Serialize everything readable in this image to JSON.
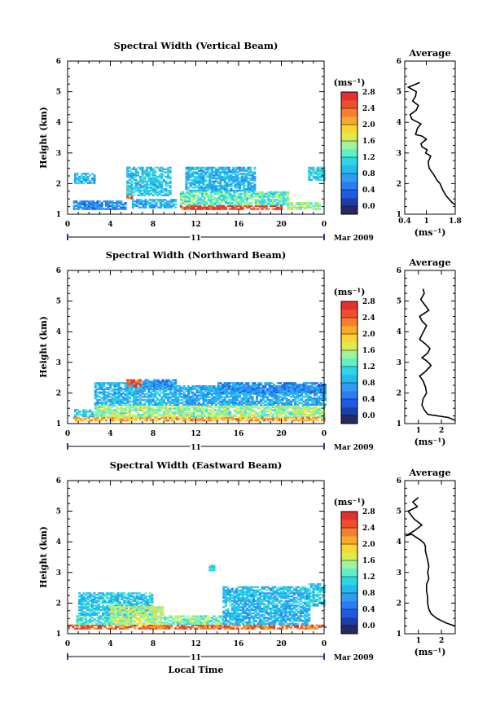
{
  "figure": {
    "date_label": "Mar 2009",
    "day_label": "11",
    "xlabel": "Local Time"
  },
  "colorbar": {
    "unit": "(ms⁻¹)",
    "ticks": [
      "0.0",
      "0.4",
      "0.8",
      "1.2",
      "1.6",
      "2.0",
      "2.4",
      "2.8"
    ],
    "colors": [
      "#262a5e",
      "#1c3ea8",
      "#1f5ae0",
      "#2b7cf2",
      "#2f9cf0",
      "#25b9ee",
      "#2cd6e6",
      "#5ff0c8",
      "#9ff2a0",
      "#ddec4b",
      "#f9d536",
      "#f7aa2e",
      "#f47f2e",
      "#ee4e2c",
      "#e3302f"
    ]
  },
  "chart_data": [
    {
      "type": "heatmap",
      "title": "Spectral Width (Vertical Beam)",
      "xlabel": "",
      "ylabel": "Height (km)",
      "xlim": [
        0,
        24
      ],
      "ylim": [
        1,
        6
      ],
      "x_ticks": [
        "0",
        "4",
        "8",
        "12",
        "16",
        "20",
        "0"
      ],
      "y_ticks": [
        "1",
        "2",
        "3",
        "4",
        "5",
        "6"
      ],
      "value_range": [
        0,
        3.0
      ],
      "regions": [
        {
          "x": [
            0.5,
            5.5
          ],
          "y": [
            1.15,
            1.45
          ],
          "v": 0.8
        },
        {
          "x": [
            0.6,
            2.5
          ],
          "y": [
            2.0,
            2.3
          ],
          "v": 1.1
        },
        {
          "x": [
            5.5,
            6.0
          ],
          "y": [
            1.5,
            1.8
          ],
          "v": 2.6
        },
        {
          "x": [
            6.0,
            10.0
          ],
          "y": [
            1.2,
            1.5
          ],
          "v": 1.0
        },
        {
          "x": [
            5.5,
            9.5
          ],
          "y": [
            1.6,
            2.5
          ],
          "v": 1.2
        },
        {
          "x": [
            10.5,
            20.0
          ],
          "y": [
            1.15,
            1.3
          ],
          "v": 2.8
        },
        {
          "x": [
            10.5,
            20.5
          ],
          "y": [
            1.3,
            1.75
          ],
          "v": 1.5
        },
        {
          "x": [
            11.0,
            17.5
          ],
          "y": [
            1.75,
            2.5
          ],
          "v": 1.1
        },
        {
          "x": [
            20.5,
            23.5
          ],
          "y": [
            1.15,
            1.4
          ],
          "v": 1.7
        },
        {
          "x": [
            22.5,
            24.0
          ],
          "y": [
            2.1,
            2.5
          ],
          "v": 1.3
        }
      ]
    },
    {
      "type": "line",
      "title": "Average",
      "xlabel": "(ms⁻¹)",
      "ylabel": "",
      "xlim": [
        0.4,
        1.8
      ],
      "ylim": [
        1,
        6
      ],
      "x_ticks": [
        "0.4",
        "1",
        "1.8"
      ],
      "y_ticks": [
        "1",
        "2",
        "3",
        "4",
        "5",
        "6"
      ],
      "x": [
        1.8,
        1.7,
        1.55,
        1.45,
        1.38,
        1.3,
        1.2,
        1.08,
        1.05,
        1.12,
        0.98,
        1.02,
        0.88,
        0.85,
        1.0,
        0.88,
        0.7,
        0.75,
        0.85,
        0.6,
        0.55,
        0.72,
        0.78,
        0.62,
        0.7,
        0.72,
        0.5,
        0.82
      ],
      "y": [
        1.3,
        1.4,
        1.6,
        1.8,
        2.0,
        2.1,
        2.3,
        2.5,
        2.7,
        2.9,
        3.0,
        3.1,
        3.2,
        3.3,
        3.45,
        3.55,
        3.6,
        3.8,
        3.95,
        4.1,
        4.25,
        4.4,
        4.55,
        4.7,
        4.85,
        5.0,
        5.15,
        5.3
      ]
    },
    {
      "type": "heatmap",
      "title": "Spectral Width (Northward Beam)",
      "xlabel": "",
      "ylabel": "Height (km)",
      "xlim": [
        0,
        24
      ],
      "ylim": [
        1,
        6
      ],
      "x_ticks": [
        "0",
        "4",
        "8",
        "12",
        "16",
        "20",
        "0"
      ],
      "y_ticks": [
        "1",
        "2",
        "3",
        "4",
        "5",
        "6"
      ],
      "value_range": [
        0,
        3.0
      ],
      "regions": [
        {
          "x": [
            0.5,
            24.0
          ],
          "y": [
            1.08,
            1.22
          ],
          "v": 2.3
        },
        {
          "x": [
            0.6,
            2.5
          ],
          "y": [
            1.22,
            1.45
          ],
          "v": 1.2
        },
        {
          "x": [
            2.5,
            24.0
          ],
          "y": [
            1.22,
            1.6
          ],
          "v": 1.7
        },
        {
          "x": [
            2.5,
            10.0
          ],
          "y": [
            1.6,
            2.3
          ],
          "v": 1.1
        },
        {
          "x": [
            10.0,
            24.0
          ],
          "y": [
            1.6,
            2.2
          ],
          "v": 1.0
        },
        {
          "x": [
            5.5,
            6.8
          ],
          "y": [
            2.2,
            2.4
          ],
          "v": 2.7
        },
        {
          "x": [
            7.0,
            10.0
          ],
          "y": [
            2.1,
            2.4
          ],
          "v": 0.9
        },
        {
          "x": [
            14.0,
            24.0
          ],
          "y": [
            2.0,
            2.3
          ],
          "v": 0.8
        }
      ]
    },
    {
      "type": "line",
      "title": "Average",
      "xlabel": "(ms⁻¹)",
      "ylabel": "",
      "xlim": [
        0.4,
        2.6
      ],
      "ylim": [
        1,
        6
      ],
      "x_ticks": [
        "1",
        "2"
      ],
      "y_ticks": [
        "1",
        "2",
        "3",
        "4",
        "5",
        "6"
      ],
      "x": [
        2.6,
        2.3,
        1.4,
        1.25,
        1.15,
        1.2,
        1.35,
        1.3,
        1.2,
        1.05,
        1.3,
        1.55,
        1.35,
        1.15,
        1.4,
        1.5,
        1.3,
        1.05,
        1.15,
        1.25,
        1.35,
        1.15,
        1.05,
        1.45,
        1.25,
        1.1,
        1.25,
        1.2
      ],
      "y": [
        1.1,
        1.2,
        1.3,
        1.45,
        1.6,
        1.8,
        2.0,
        2.2,
        2.4,
        2.55,
        2.7,
        2.9,
        3.05,
        3.15,
        3.3,
        3.45,
        3.6,
        3.75,
        3.9,
        4.05,
        4.2,
        4.35,
        4.5,
        4.7,
        4.9,
        5.05,
        5.25,
        5.4
      ]
    },
    {
      "type": "heatmap",
      "title": "Spectral Width (Eastward Beam)",
      "xlabel": "Local Time",
      "ylabel": "Height (km)",
      "xlim": [
        0,
        24
      ],
      "ylim": [
        1,
        6
      ],
      "x_ticks": [
        "0",
        "4",
        "8",
        "12",
        "16",
        "20",
        "0"
      ],
      "y_ticks": [
        "1",
        "2",
        "3",
        "4",
        "5",
        "6"
      ],
      "value_range": [
        0,
        3.0
      ],
      "regions": [
        {
          "x": [
            0.0,
            24.0
          ],
          "y": [
            1.15,
            1.3
          ],
          "v": 2.6
        },
        {
          "x": [
            0.8,
            6.0
          ],
          "y": [
            1.3,
            1.6
          ],
          "v": 1.4
        },
        {
          "x": [
            1.0,
            8.0
          ],
          "y": [
            1.6,
            2.3
          ],
          "v": 1.2
        },
        {
          "x": [
            4.0,
            9.0
          ],
          "y": [
            1.3,
            1.9
          ],
          "v": 1.8
        },
        {
          "x": [
            9.0,
            14.5
          ],
          "y": [
            1.3,
            1.6
          ],
          "v": 1.6
        },
        {
          "x": [
            14.5,
            22.5
          ],
          "y": [
            1.3,
            2.5
          ],
          "v": 1.1
        },
        {
          "x": [
            22.5,
            24.0
          ],
          "y": [
            1.9,
            2.6
          ],
          "v": 1.2
        },
        {
          "x": [
            13.2,
            13.6
          ],
          "y": [
            3.05,
            3.2
          ],
          "v": 1.4
        }
      ]
    },
    {
      "type": "line",
      "title": "Average",
      "xlabel": "(ms⁻¹)",
      "ylabel": "",
      "xlim": [
        0.4,
        2.6
      ],
      "ylim": [
        1,
        6
      ],
      "x_ticks": [
        "1",
        "2"
      ],
      "y_ticks": [
        "1",
        "2",
        "3",
        "4",
        "5",
        "6"
      ],
      "x": [
        2.6,
        2.2,
        1.8,
        1.55,
        1.45,
        1.4,
        1.4,
        1.35,
        1.35,
        1.45,
        1.4,
        1.45,
        1.4,
        1.35,
        1.3,
        1.3,
        1.25,
        1.1,
        0.9,
        0.7,
        0.45,
        0.8,
        1.15,
        0.8,
        0.55,
        0.95,
        0.75,
        1.0
      ],
      "y": [
        1.25,
        1.35,
        1.5,
        1.65,
        1.8,
        2.0,
        2.2,
        2.4,
        2.6,
        2.8,
        3.0,
        3.2,
        3.4,
        3.55,
        3.7,
        3.85,
        3.95,
        4.05,
        4.15,
        4.25,
        4.2,
        4.35,
        4.55,
        4.75,
        5.0,
        5.15,
        5.3,
        5.45
      ]
    }
  ]
}
